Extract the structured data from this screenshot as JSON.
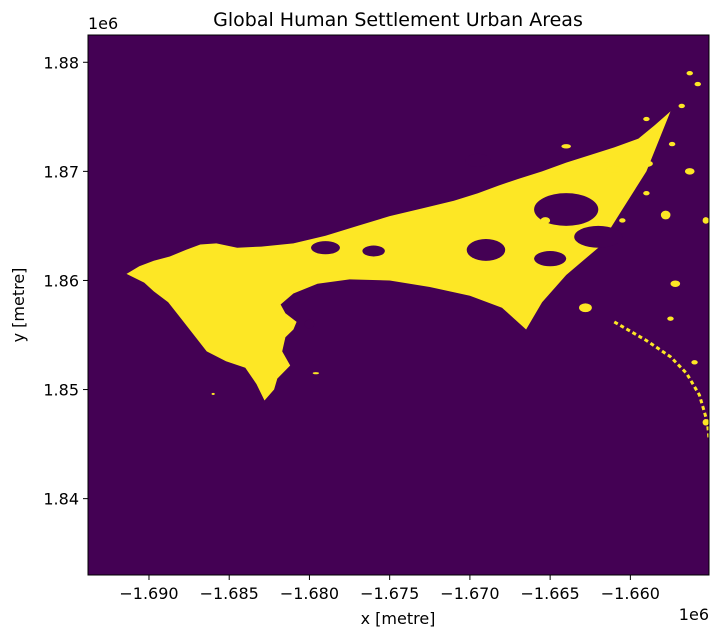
{
  "chart_data": {
    "type": "heatmap",
    "title": "Global Human Settlement Urban Areas",
    "xlabel": "x [metre]",
    "ylabel": "y [metre]",
    "x_offset_label": "1e6",
    "y_offset_label": "1e6",
    "xlim": [
      -1.6938,
      -1.6551
    ],
    "ylim": [
      1.833,
      1.8825
    ],
    "x_ticks": [
      -1.69,
      -1.685,
      -1.68,
      -1.675,
      -1.67,
      -1.665,
      -1.66
    ],
    "x_tick_labels": [
      "−1.690",
      "−1.685",
      "−1.680",
      "−1.675",
      "−1.670",
      "−1.665",
      "−1.660"
    ],
    "y_ticks": [
      1.84,
      1.85,
      1.86,
      1.87,
      1.88
    ],
    "y_tick_labels": [
      "1.84",
      "1.85",
      "1.86",
      "1.87",
      "1.88"
    ],
    "colors": {
      "background": "#440154",
      "urban": "#fde725"
    },
    "grid": false,
    "urban_region": [
      [
        -1.6914,
        1.8606
      ],
      [
        -1.6906,
        1.8613
      ],
      [
        -1.6897,
        1.8618
      ],
      [
        -1.6887,
        1.8622
      ],
      [
        -1.6877,
        1.8628
      ],
      [
        -1.6868,
        1.8633
      ],
      [
        -1.6858,
        1.8634
      ],
      [
        -1.6845,
        1.863
      ],
      [
        -1.683,
        1.8631
      ],
      [
        -1.681,
        1.8634
      ],
      [
        -1.679,
        1.8641
      ],
      [
        -1.677,
        1.865
      ],
      [
        -1.675,
        1.8659
      ],
      [
        -1.673,
        1.8666
      ],
      [
        -1.671,
        1.8673
      ],
      [
        -1.6695,
        1.868
      ],
      [
        -1.6682,
        1.8687
      ],
      [
        -1.667,
        1.8693
      ],
      [
        -1.6655,
        1.87
      ],
      [
        -1.664,
        1.8708
      ],
      [
        -1.6625,
        1.8715
      ],
      [
        -1.661,
        1.8722
      ],
      [
        -1.6595,
        1.873
      ],
      [
        -1.6585,
        1.8742
      ],
      [
        -1.6575,
        1.8755
      ],
      [
        -1.659,
        1.87
      ],
      [
        -1.6605,
        1.8665
      ],
      [
        -1.662,
        1.863
      ],
      [
        -1.664,
        1.8605
      ],
      [
        -1.6655,
        1.858
      ],
      [
        -1.6665,
        1.8555
      ],
      [
        -1.668,
        1.8575
      ],
      [
        -1.67,
        1.8586
      ],
      [
        -1.6725,
        1.8594
      ],
      [
        -1.675,
        1.86
      ],
      [
        -1.6775,
        1.8601
      ],
      [
        -1.6795,
        1.8597
      ],
      [
        -1.681,
        1.8588
      ],
      [
        -1.6818,
        1.8578
      ],
      [
        -1.6815,
        1.857
      ],
      [
        -1.6808,
        1.8562
      ],
      [
        -1.681,
        1.8555
      ],
      [
        -1.6815,
        1.8548
      ],
      [
        -1.6817,
        1.8535
      ],
      [
        -1.6812,
        1.8522
      ],
      [
        -1.682,
        1.851
      ],
      [
        -1.6822,
        1.85
      ],
      [
        -1.6828,
        1.849
      ],
      [
        -1.6833,
        1.8505
      ],
      [
        -1.684,
        1.852
      ],
      [
        -1.6852,
        1.8526
      ],
      [
        -1.6864,
        1.8535
      ],
      [
        -1.6872,
        1.855
      ],
      [
        -1.688,
        1.8565
      ],
      [
        -1.6888,
        1.858
      ],
      [
        -1.6897,
        1.859
      ],
      [
        -1.6903,
        1.8598
      ]
    ],
    "non_urban_holes": [
      {
        "cx": -1.669,
        "cy": 1.8628,
        "rx": 0.0012,
        "ry": 0.001
      },
      {
        "cx": -1.679,
        "cy": 1.863,
        "rx": 0.0009,
        "ry": 0.0006
      },
      {
        "cx": -1.676,
        "cy": 1.8627,
        "rx": 0.0007,
        "ry": 0.0005
      },
      {
        "cx": -1.664,
        "cy": 1.8665,
        "rx": 0.002,
        "ry": 0.0015
      },
      {
        "cx": -1.662,
        "cy": 1.864,
        "rx": 0.0015,
        "ry": 0.001
      },
      {
        "cx": -1.6695,
        "cy": 1.871,
        "rx": 0.0008,
        "ry": 0.0006
      },
      {
        "cx": -1.665,
        "cy": 1.862,
        "rx": 0.001,
        "ry": 0.0007
      },
      {
        "cx": -1.68,
        "cy": 1.856,
        "rx": 0.0003,
        "ry": 0.0004
      }
    ],
    "urban_patches": [
      {
        "cx": -1.661,
        "cy": 1.8702,
        "rx": 0.0005,
        "ry": 0.0003
      },
      {
        "cx": -1.6653,
        "cy": 1.8655,
        "rx": 0.0003,
        "ry": 0.0003
      },
      {
        "cx": -1.6578,
        "cy": 1.866,
        "rx": 0.0003,
        "ry": 0.0004
      },
      {
        "cx": -1.6563,
        "cy": 1.87,
        "rx": 0.0003,
        "ry": 0.0003
      },
      {
        "cx": -1.6553,
        "cy": 1.8655,
        "rx": 0.0002,
        "ry": 0.0003
      },
      {
        "cx": -1.6574,
        "cy": 1.8725,
        "rx": 0.0002,
        "ry": 0.0002
      },
      {
        "cx": -1.659,
        "cy": 1.8707,
        "rx": 0.0004,
        "ry": 0.0003
      },
      {
        "cx": -1.6572,
        "cy": 1.8597,
        "rx": 0.0003,
        "ry": 0.0003
      },
      {
        "cx": -1.6575,
        "cy": 1.8565,
        "rx": 0.0002,
        "ry": 0.0002
      },
      {
        "cx": -1.656,
        "cy": 1.8525,
        "rx": 0.0002,
        "ry": 0.0002
      },
      {
        "cx": -1.6553,
        "cy": 1.847,
        "rx": 0.0002,
        "ry": 0.0003
      },
      {
        "cx": -1.6628,
        "cy": 1.8575,
        "rx": 0.0004,
        "ry": 0.0004
      },
      {
        "cx": -1.6822,
        "cy": 1.8512,
        "rx": 0.0002,
        "ry": 0.0002
      },
      {
        "cx": -1.6796,
        "cy": 1.8515,
        "rx": 0.0002,
        "ry": 0.0001
      },
      {
        "cx": -1.686,
        "cy": 1.8496,
        "rx": 0.0001,
        "ry": 0.0001
      },
      {
        "cx": -1.664,
        "cy": 1.8723,
        "rx": 0.0003,
        "ry": 0.0002
      },
      {
        "cx": -1.6615,
        "cy": 1.871,
        "rx": 0.0002,
        "ry": 0.0002
      },
      {
        "cx": -1.659,
        "cy": 1.8748,
        "rx": 0.0002,
        "ry": 0.0002
      },
      {
        "cx": -1.6568,
        "cy": 1.876,
        "rx": 0.0002,
        "ry": 0.0002
      },
      {
        "cx": -1.6563,
        "cy": 1.879,
        "rx": 0.0002,
        "ry": 0.0002
      },
      {
        "cx": -1.6558,
        "cy": 1.878,
        "rx": 0.0002,
        "ry": 0.0002
      },
      {
        "cx": -1.659,
        "cy": 1.868,
        "rx": 0.0002,
        "ry": 0.0002
      },
      {
        "cx": -1.6605,
        "cy": 1.8655,
        "rx": 0.0002,
        "ry": 0.0002
      },
      {
        "cx": -1.663,
        "cy": 1.8628,
        "rx": 0.0002,
        "ry": 0.0002
      }
    ],
    "coast_strip": [
      [
        -1.661,
        1.8562
      ],
      [
        -1.659,
        1.8545
      ],
      [
        -1.6575,
        1.853
      ],
      [
        -1.6565,
        1.8515
      ],
      [
        -1.6557,
        1.8495
      ],
      [
        -1.6552,
        1.847
      ],
      [
        -1.6551,
        1.8455
      ]
    ]
  }
}
